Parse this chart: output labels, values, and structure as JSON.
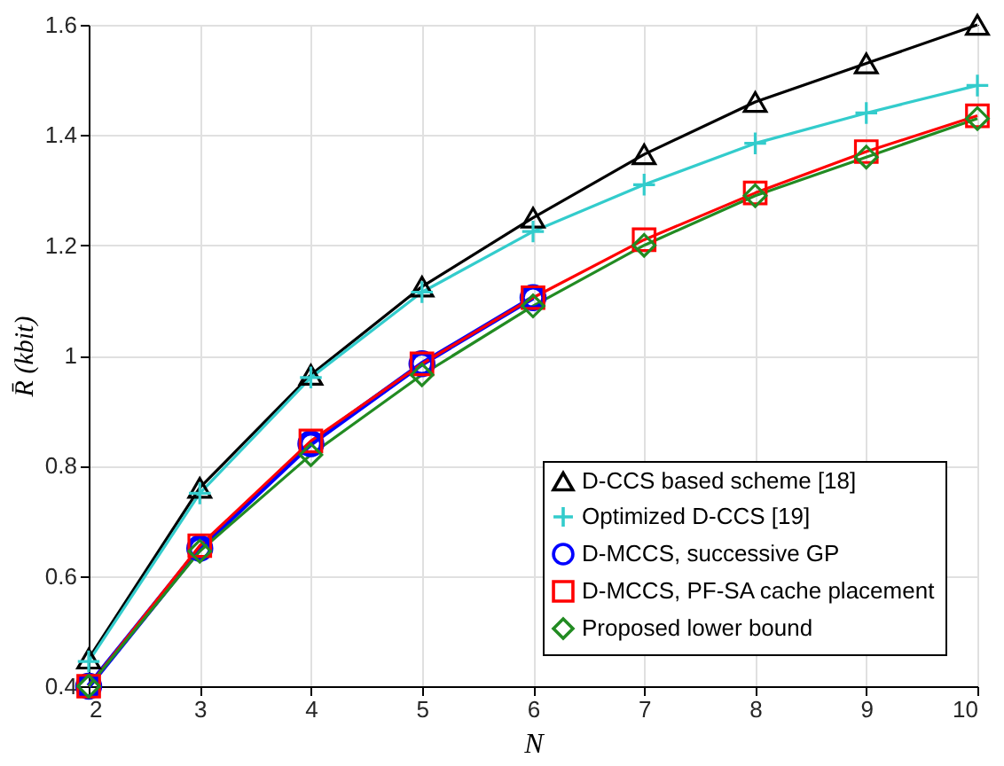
{
  "chart_data": {
    "type": "line",
    "xlabel": "N",
    "ylabel": "R̄ (kbit)",
    "x": [
      2,
      3,
      4,
      5,
      6,
      7,
      8,
      9,
      10
    ],
    "xlim": [
      2,
      10
    ],
    "xticks": [
      2,
      3,
      4,
      5,
      6,
      7,
      8,
      9,
      10
    ],
    "ylim": [
      0.4,
      1.6
    ],
    "yticks": [
      0.4,
      0.6,
      0.8,
      1,
      1.2,
      1.4,
      1.6
    ],
    "grid": true,
    "legend": "bottom right",
    "line_style": "solid",
    "series": [
      {
        "name": "D-CCS based scheme [18]",
        "color": "#000000",
        "marker": "triangle",
        "values": [
          0.45,
          0.76,
          0.965,
          1.125,
          1.25,
          1.365,
          1.46,
          1.53,
          1.6
        ]
      },
      {
        "name": "Optimized D-CCS [19]",
        "color": "#33cccc",
        "marker": "cross",
        "values": [
          0.445,
          0.75,
          0.96,
          1.115,
          1.225,
          1.31,
          1.385,
          1.44,
          1.49
        ]
      },
      {
        "name": "D-MCCS, successive GP",
        "color": "#0000ff",
        "marker": "circle",
        "values": [
          0.4,
          0.65,
          0.84,
          0.985,
          1.105,
          null,
          null,
          null,
          null
        ]
      },
      {
        "name": "D-MCCS, PF-SA cache placement",
        "color": "#ff0000",
        "marker": "square",
        "values": [
          0.4,
          0.655,
          0.845,
          0.985,
          1.105,
          1.21,
          1.295,
          1.37,
          1.435
        ]
      },
      {
        "name": "Proposed lower bound",
        "color": "#228b22",
        "marker": "diamond",
        "values": [
          0.4,
          0.645,
          0.82,
          0.965,
          1.09,
          1.2,
          1.29,
          1.36,
          1.43
        ]
      }
    ]
  }
}
